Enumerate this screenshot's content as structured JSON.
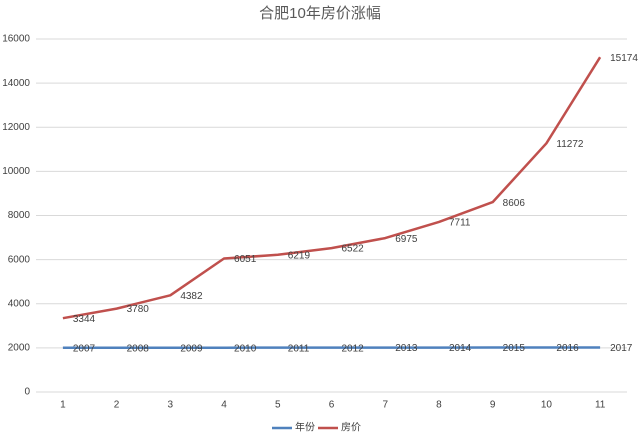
{
  "chart_data": {
    "type": "line",
    "title": "合肥10年房价涨幅",
    "categories": [
      "1",
      "2",
      "3",
      "4",
      "5",
      "6",
      "7",
      "8",
      "9",
      "10",
      "11"
    ],
    "series": [
      {
        "name": "年份",
        "color": "#4f81bd",
        "values": [
          2007,
          2008,
          2009,
          2010,
          2011,
          2012,
          2013,
          2014,
          2015,
          2016,
          2017
        ]
      },
      {
        "name": "房价",
        "color": "#c0504d",
        "values": [
          3344,
          3780,
          4382,
          6051,
          6219,
          6522,
          6975,
          7711,
          8606,
          11272,
          15174
        ]
      }
    ],
    "ylim": [
      0,
      16000
    ],
    "yticks": [
      0,
      2000,
      4000,
      6000,
      8000,
      10000,
      12000,
      14000,
      16000
    ],
    "grid": true,
    "legend": "bottom",
    "data_labels": true
  }
}
